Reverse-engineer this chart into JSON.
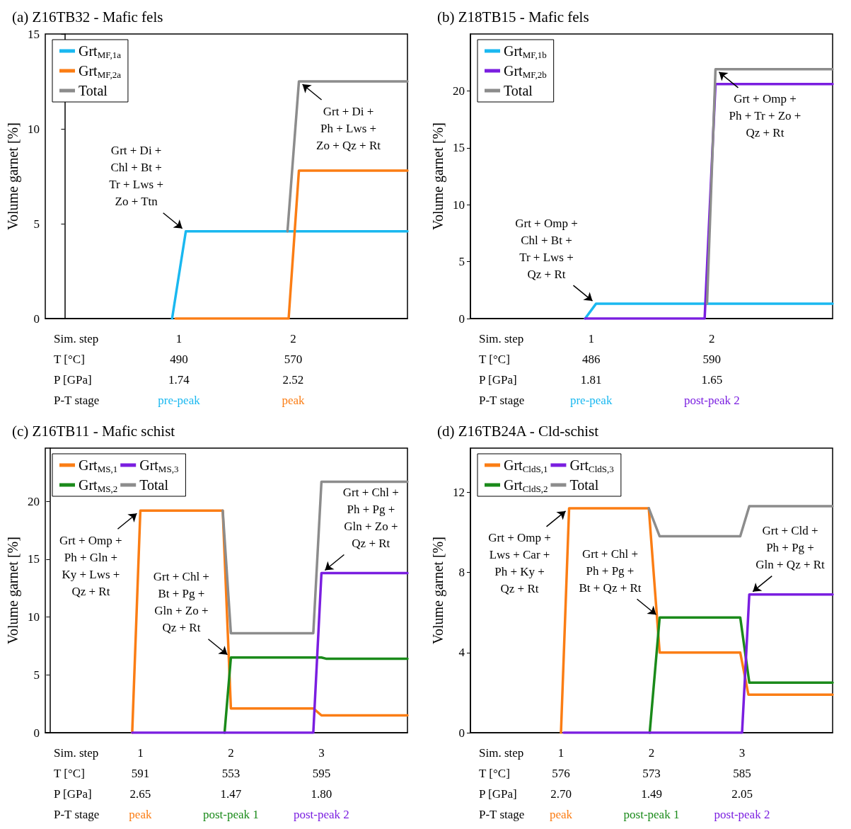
{
  "chart_data": [
    {
      "type": "line",
      "title": "(a) Z16TB32 - Mafic fels",
      "xlabel": "Sim. step",
      "ylabel": "Volume garnet [%]",
      "xlim": [
        -0.17,
        3.0
      ],
      "ylim": [
        0,
        15
      ],
      "yticks": [
        0,
        5,
        10,
        15
      ],
      "xticks": [
        1,
        2
      ],
      "series": [
        {
          "name": "Grt$_{MF,1a}$",
          "color": "#1ab8f0",
          "x": [
            0.94,
            1.06,
            3.0
          ],
          "values": [
            0,
            4.6,
            4.6
          ]
        },
        {
          "name": "Grt$_{MF,2a}$",
          "color": "#fb7d14",
          "x": [
            0.97,
            1.96,
            2.05,
            3.0
          ],
          "values": [
            0,
            0,
            7.8,
            7.8
          ]
        },
        {
          "name": "Total",
          "color": "#8c8c8c",
          "x": [
            1.95,
            2.05,
            3.0
          ],
          "values": [
            4.6,
            12.5,
            12.5
          ]
        }
      ],
      "annotations": [
        "T [°C]\t490\t570",
        "P [GPa]\t1.74\t2.52",
        "P-T stage\tpre-peak\tpeak",
        {
          "text": "Grt + Di +\nChl + Bt +\nTr + Lws +\nZo + Ttn",
          "x": 1.06,
          "y": 4.6
        },
        {
          "text": "Grt + Di +\nPh + Lws +\nZo + Qz + Rt",
          "x": 2.05,
          "y": 12.5
        }
      ],
      "grid": false,
      "legend": "top left",
      "line_style": "solid"
    },
    {
      "type": "line",
      "title": "(b) Z18TB15 - Mafic fels",
      "xlabel": "Sim. step",
      "ylabel": "Volume garnet [%]",
      "xlim": [
        0,
        3.0
      ],
      "ylim": [
        0,
        25
      ],
      "yticks": [
        0,
        5,
        10,
        15,
        20
      ],
      "xticks": [
        1,
        2
      ],
      "series": [
        {
          "name": "Grt$_{MF,1b}$",
          "color": "#1ab8f0",
          "x": [
            0.95,
            1.04,
            3.0
          ],
          "values": [
            0,
            1.3,
            1.3
          ]
        },
        {
          "name": "Grt$_{MF,2b}$",
          "color": "#7a1ee0",
          "x": [
            0.95,
            1.94,
            2.03,
            3.0
          ],
          "values": [
            0,
            0,
            20.6,
            20.6
          ]
        },
        {
          "name": "Total",
          "color": "#8c8c8c",
          "x": [
            1.96,
            2.03,
            3.0
          ],
          "values": [
            1.3,
            21.9,
            21.9
          ]
        }
      ],
      "annotations": [
        "T [°C]\t486\t590",
        "P [GPa]\t1.81\t1.65",
        "P-T stage\tpre-peak\tpost-peak 2",
        {
          "text": "Grt + Omp +\nChl + Bt +\nTr + Lws +\nQz + Rt",
          "x": 1.04,
          "y": 1.3
        },
        {
          "text": "Grt + Omp +\nPh + Tr + Zo +\nQz + Rt",
          "x": 2.03,
          "y": 21.9
        }
      ],
      "grid": false,
      "legend": "top left",
      "line_style": "solid"
    },
    {
      "type": "line",
      "title": "(c) Z16TB11 - Mafic schist",
      "xlabel": "Sim. step",
      "ylabel": "Volume garnet [%]",
      "xlim": [
        -0.05,
        3.95
      ],
      "ylim": [
        0,
        24.6
      ],
      "yticks": [
        0,
        5,
        10,
        15,
        20
      ],
      "xticks": [
        1,
        2,
        3
      ],
      "series": [
        {
          "name": "Grt$_{MS,1}$",
          "color": "#fb7d14",
          "x": [
            0.91,
            1.0,
            1.91,
            2.0,
            2.91,
            3.0,
            3.95
          ],
          "values": [
            0,
            19.2,
            19.2,
            2.1,
            2.1,
            1.5,
            1.5
          ]
        },
        {
          "name": "Grt$_{MS,2}$",
          "color": "#1a8a1a",
          "x": [
            1.93,
            2.0,
            3.0,
            3.05,
            3.95
          ],
          "values": [
            0,
            6.5,
            6.5,
            6.4,
            6.4
          ]
        },
        {
          "name": "Grt$_{MS,3}$",
          "color": "#7a1ee0",
          "x": [
            0.91,
            2.91,
            3.0,
            3.95
          ],
          "values": [
            0,
            0,
            13.8,
            13.8
          ]
        },
        {
          "name": "Total",
          "color": "#8c8c8c",
          "x": [
            1.91,
            2.0,
            2.91,
            3.0,
            3.95
          ],
          "values": [
            19.2,
            8.6,
            8.6,
            21.7,
            21.7
          ]
        }
      ],
      "annotations": [
        "T [°C]\t591\t553\t595",
        "P [GPa]\t2.65\t1.47\t1.80",
        "P-T stage\tpeak\tpost-peak 1\tpost-peak 2",
        {
          "text": "Grt + Omp +\nPh + Gln +\nKy + Lws +\nQz + Rt",
          "x": 1.0,
          "y": 19.2
        },
        {
          "text": "Grt + Chl +\nBt + Pg +\nGln + Zo +\nQz + Rt",
          "x": 2.0,
          "y": 6.5
        },
        {
          "text": "Grt + Chl +\nPh + Pg +\nGln + Zo +\nQz + Rt",
          "x": 3.0,
          "y": 13.8
        }
      ],
      "grid": false,
      "legend": "top left",
      "line_style": "solid"
    },
    {
      "type": "line",
      "title": "(d) Z16TB24A - Cld-schist",
      "xlabel": "Sim. step",
      "ylabel": "Volume garnet [%]",
      "xlim": [
        0,
        4.0
      ],
      "ylim": [
        0,
        14.2
      ],
      "yticks": [
        0,
        4,
        8,
        12
      ],
      "xticks": [
        1,
        2,
        3
      ],
      "series": [
        {
          "name": "Grt$_{CldS,1}$",
          "color": "#fb7d14",
          "x": [
            1.0,
            1.09,
            1.97,
            2.09,
            2.98,
            3.07,
            4.0
          ],
          "values": [
            0,
            11.2,
            11.2,
            4.0,
            4.0,
            1.9,
            1.9
          ]
        },
        {
          "name": "Grt$_{CldS,2}$",
          "color": "#1a8a1a",
          "x": [
            1.98,
            2.09,
            2.98,
            3.08,
            4.0
          ],
          "values": [
            0,
            5.75,
            5.75,
            2.5,
            2.5
          ]
        },
        {
          "name": "Grt$_{CldS,3}$",
          "color": "#7a1ee0",
          "x": [
            1.03,
            3.0,
            3.08,
            4.0
          ],
          "values": [
            0,
            0,
            6.9,
            6.9
          ]
        },
        {
          "name": "Total",
          "color": "#8c8c8c",
          "x": [
            1.97,
            2.09,
            2.98,
            3.08,
            4.0
          ],
          "values": [
            11.2,
            9.8,
            9.8,
            11.3,
            11.3
          ]
        }
      ],
      "annotations": [
        "T [°C]\t576\t573\t585",
        "P [GPa]\t2.70\t1.49\t2.05",
        "P-T stage\tpeak\tpost-peak 1\tpost-peak 2",
        {
          "text": "Grt + Omp +\nLws + Car +\nPh + Ky +\nQz + Rt",
          "x": 1.09,
          "y": 11.2
        },
        {
          "text": "Grt + Chl +\nPh + Pg +\nBt + Qz + Rt",
          "x": 2.09,
          "y": 5.75
        },
        {
          "text": "Grt + Cld +\nPh + Pg +\nGln + Qz + Rt",
          "x": 3.08,
          "y": 6.9
        }
      ],
      "grid": false,
      "legend": "top left",
      "line_style": "solid"
    }
  ]
}
